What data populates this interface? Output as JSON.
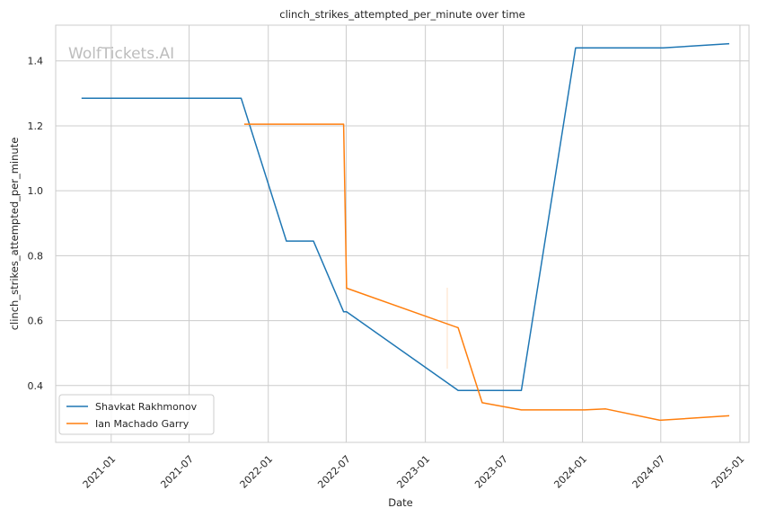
{
  "chart_data": {
    "type": "line",
    "title": "clinch_strikes_attempted_per_minute over time",
    "xlabel": "Date",
    "ylabel": "clinch_strikes_attempted_per_minute",
    "watermark": "WolfTickets.AI",
    "x_ticks": [
      "2021-01",
      "2021-07",
      "2022-01",
      "2022-07",
      "2023-01",
      "2023-07",
      "2024-01",
      "2024-07",
      "2025-01"
    ],
    "y_ticks": [
      "0.4",
      "0.6",
      "0.8",
      "1.0",
      "1.2",
      "1.4"
    ],
    "xlim": [
      "2020-08-25",
      "2025-01-22"
    ],
    "ylim": [
      0.225,
      1.51
    ],
    "grid": true,
    "legend_position": "lower-left",
    "series": [
      {
        "name": "Shavkat Rakhmonov",
        "color": "#1f77b4",
        "points": [
          {
            "x": "2020-10-24",
            "y": 1.285
          },
          {
            "x": "2021-10-30",
            "y": 1.285
          },
          {
            "x": "2022-02-12",
            "y": 0.845
          },
          {
            "x": "2022-04-16",
            "y": 0.845
          },
          {
            "x": "2022-06-25",
            "y": 0.627
          },
          {
            "x": "2022-07-02",
            "y": 0.627
          },
          {
            "x": "2023-03-18",
            "y": 0.385
          },
          {
            "x": "2023-08-12",
            "y": 0.385
          },
          {
            "x": "2023-12-16",
            "y": 1.44
          },
          {
            "x": "2024-07-06",
            "y": 1.44
          },
          {
            "x": "2024-12-07",
            "y": 1.453
          }
        ]
      },
      {
        "name": "Ian Machado Garry",
        "color": "#ff7f0e",
        "points": [
          {
            "x": "2021-11-06",
            "y": 1.205
          },
          {
            "x": "2022-06-25",
            "y": 1.205
          },
          {
            "x": "2022-07-02",
            "y": 0.7
          },
          {
            "x": "2023-03-18",
            "y": 0.578
          },
          {
            "x": "2023-05-13",
            "y": 0.347
          },
          {
            "x": "2023-08-12",
            "y": 0.325
          },
          {
            "x": "2024-01-06",
            "y": 0.325
          },
          {
            "x": "2024-02-24",
            "y": 0.328
          },
          {
            "x": "2024-06-29",
            "y": 0.293
          },
          {
            "x": "2024-12-07",
            "y": 0.307
          }
        ]
      }
    ]
  }
}
